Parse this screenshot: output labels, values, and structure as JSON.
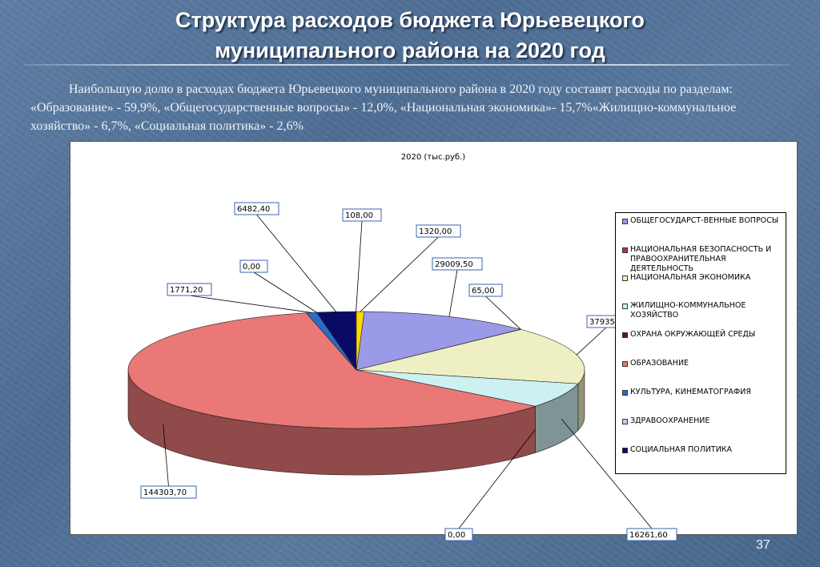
{
  "slide": {
    "title_line1": "Структура расходов бюджета Юрьевецкого",
    "title_line2": "муниципального района на 2020 год",
    "paragraph": "Наибольшую долю в расходах бюджета Юрьевецкого муниципального района в 2020 году составят расходы по разделам: «Образование» - 59,9%, «Общегосударственные вопросы» - 12,0%, «Национальная экономика»- 15,7%«Жилищно-коммунальное хозяйство» - 6,7%, «Социальная политика» - 2,6%",
    "page_number": "37"
  },
  "chart_data": {
    "type": "pie",
    "title": "2020 (тыс.руб.)",
    "legend_position": "right",
    "slices": [
      {
        "name": "ОБЩЕГОСУДАРСТ-ВЕННЫЕ ВОПРОСЫ",
        "value": 29009.5,
        "label": "29009,50",
        "color": "#9a9ae8"
      },
      {
        "name": "НАЦИОНАЛЬНАЯ БЕЗОПАСНОСТЬ И ПРАВООХРАНИТЕЛЬНАЯ ДЕЯТЕЛЬНОСТЬ",
        "value": 65.0,
        "label": "65,00",
        "color": "#a33a55"
      },
      {
        "name": "НАЦИОНАЛЬНАЯ ЭКОНОМИКА",
        "value": 37935,
        "label": "37935,",
        "color": "#efefc4"
      },
      {
        "name": "ЖИЛИЩНО-КОММУНАЛЬНОЕ ХОЗЯЙСТВО",
        "value": 16261.6,
        "label": "16261,60",
        "color": "#cdf1f1"
      },
      {
        "name": "ОХРАНА ОКРУЖАЮЩЕЙ СРЕДЫ",
        "value": 0.0,
        "label": "0,00",
        "color": "#5a0f55"
      },
      {
        "name": "ОБРАЗОВАНИЕ",
        "value": 144303.7,
        "label": "144303,70",
        "color": "#e97876"
      },
      {
        "name": "КУЛЬТУРА, КИНЕМАТОГРАФИЯ",
        "value": 1771.2,
        "label": "1771,20",
        "color": "#2a6bc7"
      },
      {
        "name": "ЗДРАВООХРАНЕНИЕ",
        "value": 0.0,
        "label": "0,00",
        "color": "#c2d2f2"
      },
      {
        "name": "СОЦИАЛЬНАЯ ПОЛИТИКА",
        "value": 6482.4,
        "label": "6482,40",
        "color": "#0a0a66"
      },
      {
        "name": "",
        "value": 108.0,
        "label": "108,00",
        "color": "#4b7f2e"
      },
      {
        "name": "",
        "value": 1320.0,
        "label": "1320,00",
        "color": "#ffd700"
      }
    ]
  }
}
